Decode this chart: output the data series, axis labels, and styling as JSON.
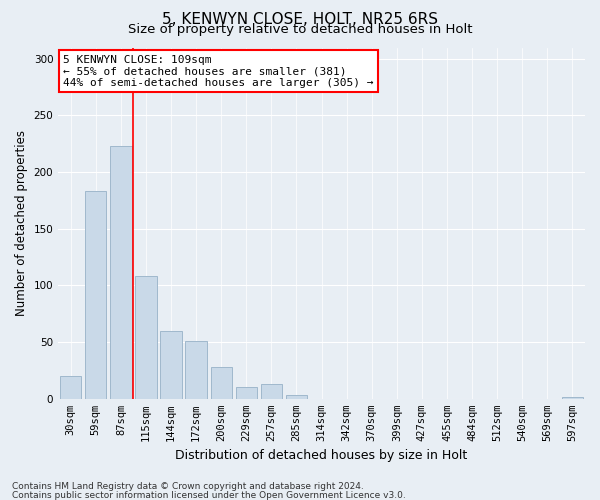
{
  "title": "5, KENWYN CLOSE, HOLT, NR25 6RS",
  "subtitle": "Size of property relative to detached houses in Holt",
  "xlabel": "Distribution of detached houses by size in Holt",
  "ylabel": "Number of detached properties",
  "categories": [
    "30sqm",
    "59sqm",
    "87sqm",
    "115sqm",
    "144sqm",
    "172sqm",
    "200sqm",
    "229sqm",
    "257sqm",
    "285sqm",
    "314sqm",
    "342sqm",
    "370sqm",
    "399sqm",
    "427sqm",
    "455sqm",
    "484sqm",
    "512sqm",
    "540sqm",
    "569sqm",
    "597sqm"
  ],
  "values": [
    20,
    183,
    223,
    108,
    60,
    51,
    28,
    10,
    13,
    3,
    0,
    0,
    0,
    0,
    0,
    0,
    0,
    0,
    0,
    0,
    2
  ],
  "bar_color": "#c9d9e8",
  "bar_edgecolor": "#a0b8cc",
  "vline_color": "red",
  "vline_x_index": 2.5,
  "annotation_text": "5 KENWYN CLOSE: 109sqm\n← 55% of detached houses are smaller (381)\n44% of semi-detached houses are larger (305) →",
  "annotation_box_color": "white",
  "annotation_box_edgecolor": "red",
  "ylim": [
    0,
    310
  ],
  "yticks": [
    0,
    50,
    100,
    150,
    200,
    250,
    300
  ],
  "background_color": "#e8eef4",
  "plot_background": "#e8eef4",
  "footer_line1": "Contains HM Land Registry data © Crown copyright and database right 2024.",
  "footer_line2": "Contains public sector information licensed under the Open Government Licence v3.0.",
  "title_fontsize": 11,
  "subtitle_fontsize": 9.5,
  "xlabel_fontsize": 9,
  "ylabel_fontsize": 8.5,
  "tick_fontsize": 7.5,
  "footer_fontsize": 6.5,
  "annotation_fontsize": 8
}
